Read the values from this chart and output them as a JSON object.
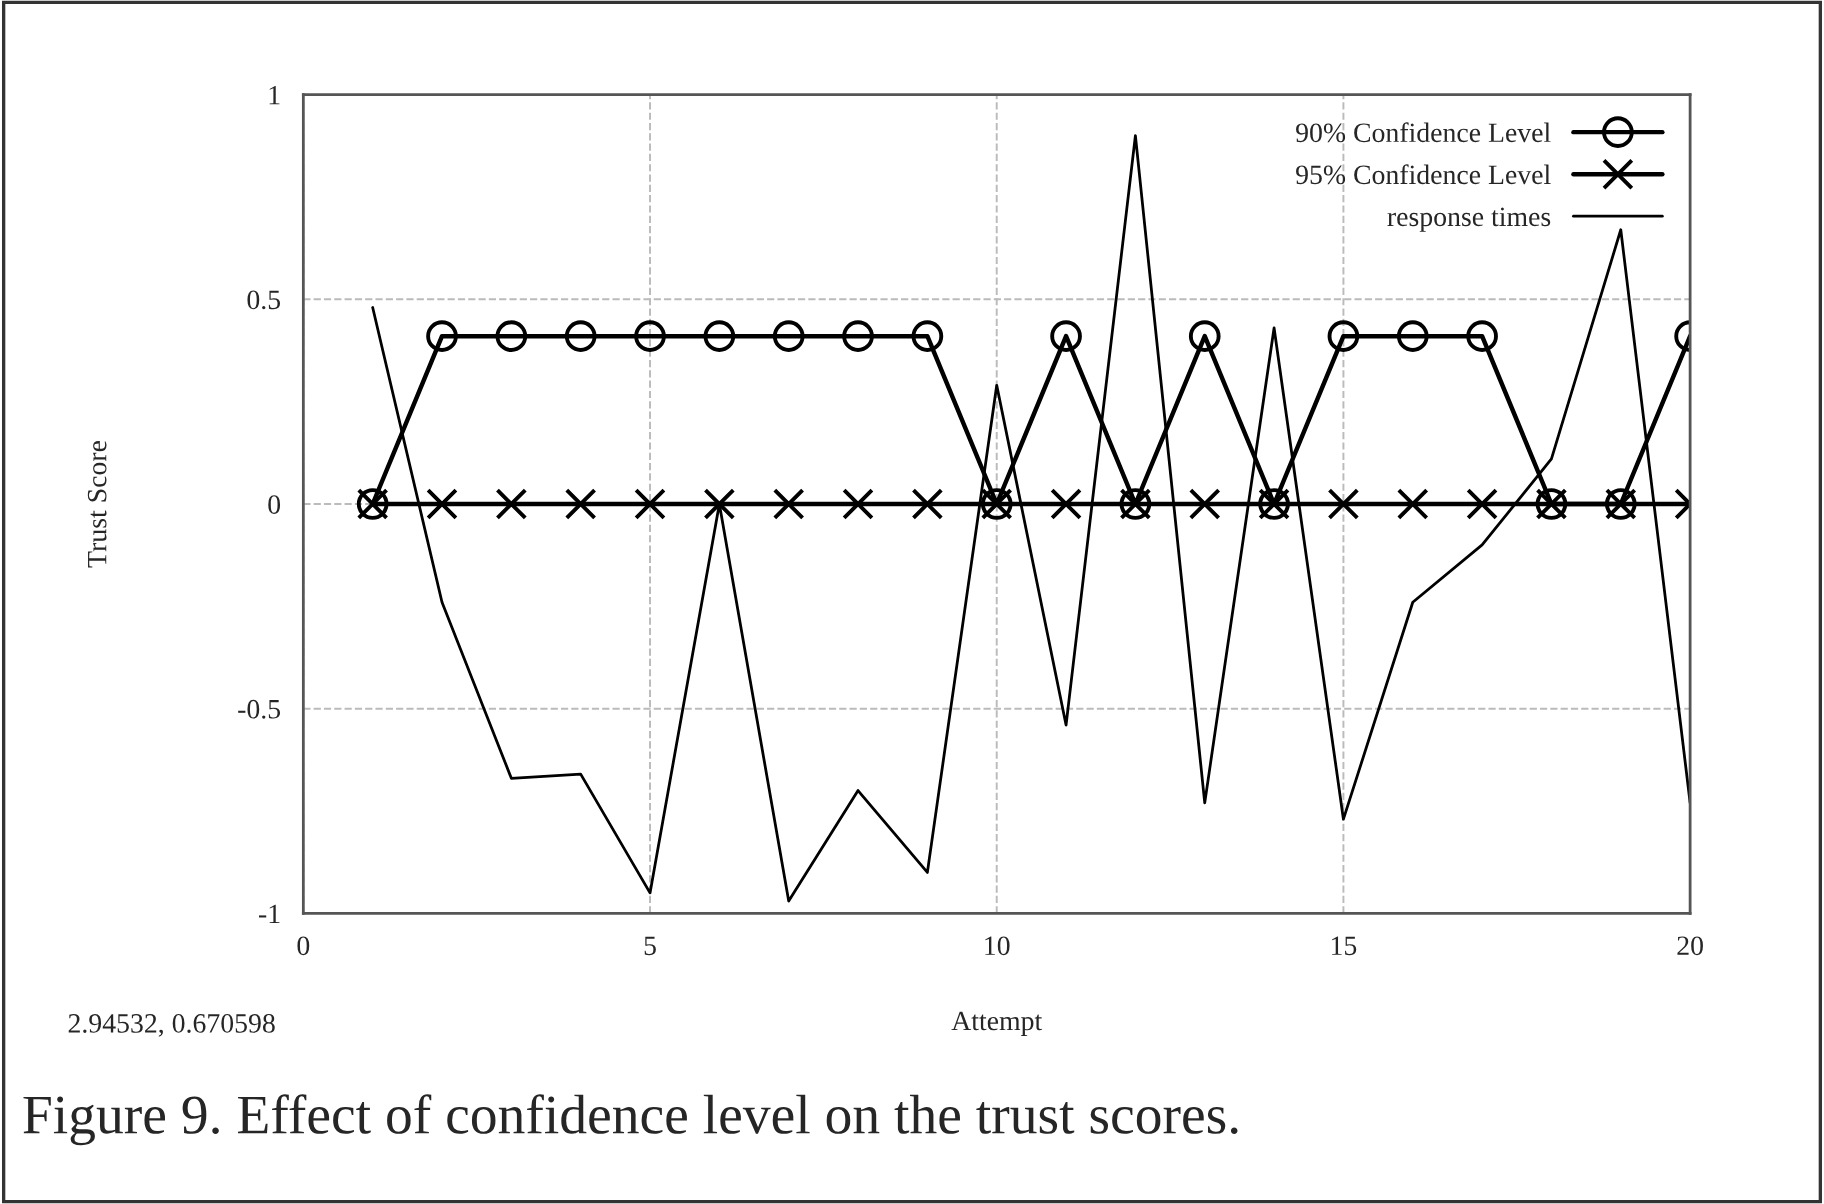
{
  "chart_data": {
    "type": "line",
    "xlabel": "Attempt",
    "ylabel": "Trust Score",
    "x": [
      1,
      2,
      3,
      4,
      5,
      6,
      7,
      8,
      9,
      10,
      11,
      12,
      13,
      14,
      15,
      16,
      17,
      18,
      19,
      20
    ],
    "series": [
      {
        "name": "90% Confidence Level",
        "color": "#000000",
        "marker": "circle",
        "values": [
          0,
          0.41,
          0.41,
          0.41,
          0.41,
          0.41,
          0.41,
          0.41,
          0.41,
          0,
          0.41,
          0,
          0.41,
          0,
          0.41,
          0.41,
          0.41,
          0,
          0,
          0.41
        ]
      },
      {
        "name": "95% Confidence Level",
        "color": "#000000",
        "marker": "cross",
        "values": [
          0,
          0,
          0,
          0,
          0,
          0,
          0,
          0,
          0,
          0,
          0,
          0,
          0,
          0,
          0,
          0,
          0,
          0,
          0,
          0
        ]
      },
      {
        "name": "response times",
        "color": "#000000",
        "marker": "none",
        "values": [
          0.48,
          -0.24,
          -0.67,
          -0.66,
          -0.95,
          0,
          -0.97,
          -0.7,
          -0.9,
          0.29,
          -0.54,
          0.9,
          -0.73,
          0.43,
          -0.77,
          -0.24,
          -0.1,
          0.11,
          0.67,
          -0.73
        ]
      }
    ],
    "xlim": [
      0,
      20
    ],
    "ylim": [
      -1,
      1
    ],
    "xticks": [
      0,
      5,
      10,
      15,
      20
    ],
    "yticks": [
      -1,
      -0.5,
      0,
      0.5,
      1
    ],
    "grid": true,
    "legend": "top right",
    "line_style": "solid",
    "annotations": [
      "2.94532, 0.670598",
      "Figure 9. Effect of confidence level on the trust scores."
    ]
  }
}
